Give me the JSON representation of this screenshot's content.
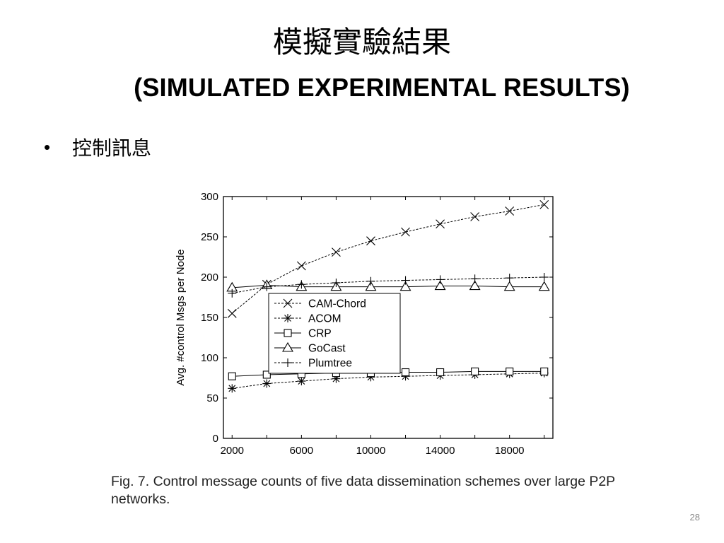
{
  "slide": {
    "title_zh": "模擬實驗結果",
    "title_en": "(SIMULATED EXPERIMENTAL RESULTS)",
    "bullet_symbol": "•",
    "bullet_text": "控制訊息",
    "caption": "Fig. 7. Control message counts of five data dissemination schemes over large P2P networks.",
    "slide_number": "28"
  },
  "chart_data": {
    "type": "line",
    "title": "",
    "xlabel": "",
    "ylabel": "Avg. #control Msgs per Node",
    "xlim": [
      1500,
      20500
    ],
    "ylim": [
      0,
      300
    ],
    "x_ticks": [
      2000,
      6000,
      10000,
      14000,
      18000
    ],
    "y_ticks": [
      0,
      50,
      100,
      150,
      200,
      250,
      300
    ],
    "grid": false,
    "legend_position": "center-left",
    "x": [
      2000,
      4000,
      6000,
      8000,
      10000,
      12000,
      14000,
      16000,
      18000,
      20000
    ],
    "series": [
      {
        "name": "CAM-Chord",
        "marker": "x",
        "line": "dashed",
        "values": [
          155,
          191,
          214,
          231,
          245,
          256,
          266,
          275,
          282,
          290
        ]
      },
      {
        "name": "ACOM",
        "marker": "asterisk",
        "line": "dashed",
        "values": [
          62,
          68,
          71,
          74,
          76,
          77,
          78,
          79,
          80,
          81
        ]
      },
      {
        "name": "CRP",
        "marker": "square",
        "line": "solid",
        "values": [
          77,
          79,
          80,
          81,
          81,
          82,
          82,
          83,
          83,
          83
        ]
      },
      {
        "name": "GoCast",
        "marker": "triangle",
        "line": "solid",
        "values": [
          187,
          190,
          188,
          188,
          188,
          188,
          189,
          189,
          188,
          188
        ]
      },
      {
        "name": "Plumtree",
        "marker": "plus",
        "line": "dashed",
        "values": [
          180,
          188,
          191,
          193,
          195,
          196,
          197,
          198,
          199,
          200
        ]
      }
    ]
  }
}
